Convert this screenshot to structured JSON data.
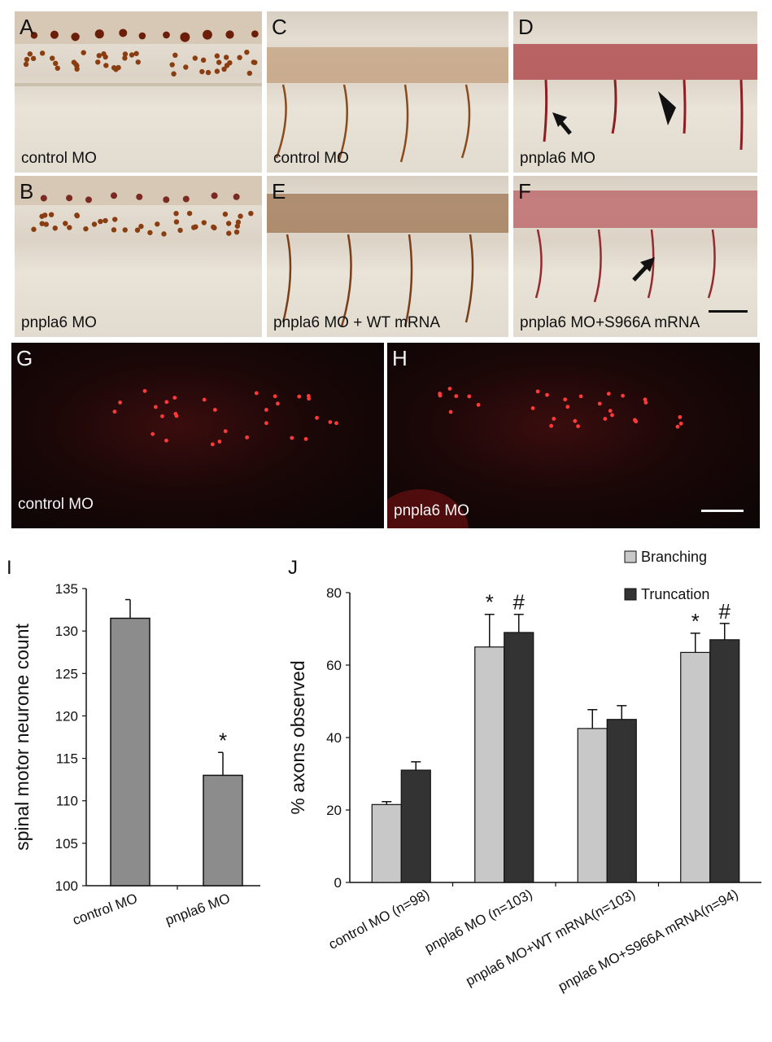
{
  "panels": {
    "A": {
      "letter": "A",
      "caption": "control MO"
    },
    "B": {
      "letter": "B",
      "caption": "pnpla6 MO"
    },
    "C": {
      "letter": "C",
      "caption": "control MO"
    },
    "D": {
      "letter": "D",
      "caption": "pnpla6 MO"
    },
    "E": {
      "letter": "E",
      "caption": "pnpla6 MO + WT mRNA"
    },
    "F": {
      "letter": "F",
      "caption": "pnpla6 MO+S966A mRNA"
    },
    "G": {
      "letter": "G",
      "caption": "control MO"
    },
    "H": {
      "letter": "H",
      "caption": "pnpla6 MO"
    }
  },
  "colors": {
    "bar_single": "#8c8c8c",
    "branching": "#c8c8c8",
    "truncation": "#333333",
    "stain_brown": "#8a3d10",
    "stain_red": "#a01828",
    "fluor_red": "#ff3a3a"
  },
  "chart_data": [
    {
      "panel_letter": "I",
      "type": "bar",
      "ylabel": "spinal motor neurone count",
      "categories": [
        "control MO",
        "pnpla6 MO"
      ],
      "values": [
        131.5,
        113
      ],
      "errors": [
        2.2,
        2.7
      ],
      "annotations": [
        "",
        "*"
      ],
      "ylim": [
        100,
        135
      ],
      "yticks": [
        100,
        105,
        110,
        115,
        120,
        125,
        130,
        135
      ]
    },
    {
      "panel_letter": "J",
      "type": "bar",
      "ylabel": "% axons observed",
      "categories": [
        "control MO (n=98)",
        "pnpla6 MO (n=103)",
        "pnpla6 MO+WT mRNA(n=103)",
        "pnpla6 MO+S966A mRNA(n=94)"
      ],
      "series": [
        {
          "name": "Branching",
          "values": [
            21.5,
            65,
            42.5,
            63.5
          ],
          "errors": [
            0.8,
            9,
            5.2,
            5.3
          ],
          "annotations": [
            "",
            "*",
            "",
            "*"
          ]
        },
        {
          "name": "Truncation",
          "values": [
            31,
            69,
            45,
            67
          ],
          "errors": [
            2.3,
            5,
            3.8,
            4.5
          ],
          "annotations": [
            "",
            "#",
            "",
            "#"
          ]
        }
      ],
      "ylim": [
        0,
        80
      ],
      "yticks": [
        0,
        20,
        40,
        60,
        80
      ],
      "legend": "top-right"
    }
  ]
}
